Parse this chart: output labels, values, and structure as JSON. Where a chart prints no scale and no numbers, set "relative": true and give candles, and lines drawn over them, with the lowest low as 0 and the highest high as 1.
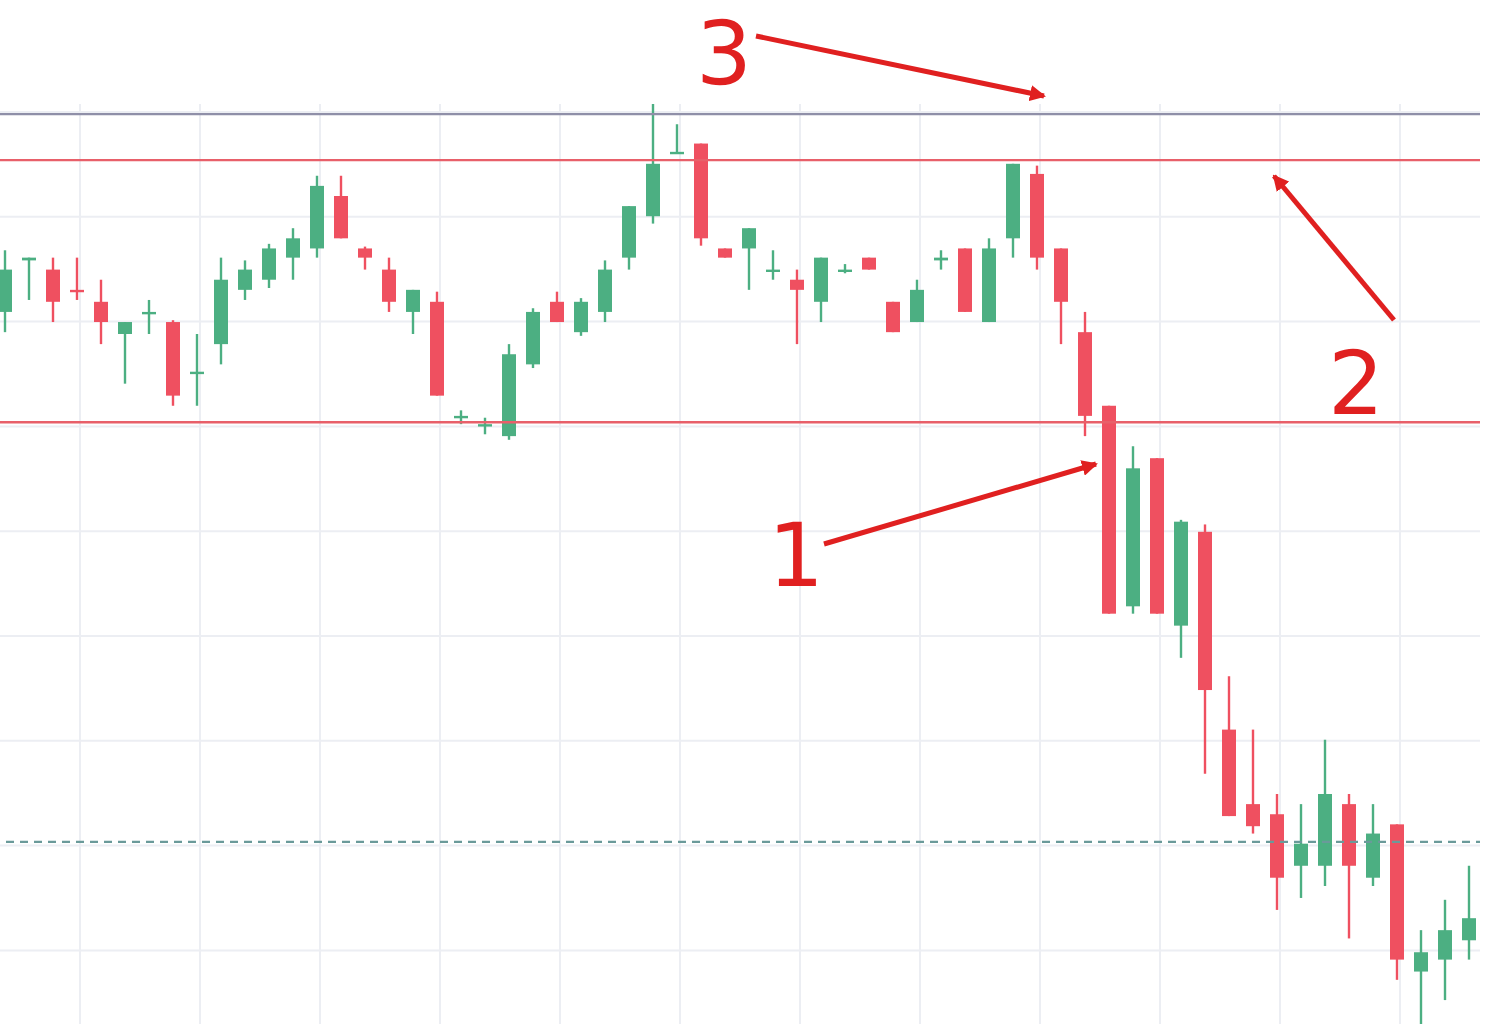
{
  "chart_data": {
    "type": "candlestick",
    "relative": true,
    "grid": true,
    "categories": [
      null,
      null,
      null,
      null,
      null,
      null,
      null,
      null,
      null,
      null,
      null,
      null,
      null,
      null,
      null,
      null,
      null,
      null,
      null,
      null,
      null,
      null,
      null,
      null,
      null,
      null,
      null,
      null,
      null,
      null,
      null,
      null,
      null,
      null,
      null,
      null,
      null,
      null,
      null,
      null,
      null,
      null,
      null,
      null,
      null,
      null,
      null,
      null,
      null,
      null,
      null,
      null,
      null,
      null,
      null,
      null,
      null,
      null,
      null,
      null,
      null,
      null
    ],
    "ohlc": [
      [
        0.774,
        0.841,
        0.752,
        0.82
      ],
      [
        0.83,
        0.833,
        0.787,
        0.833
      ],
      [
        0.82,
        0.833,
        0.763,
        0.785
      ],
      [
        0.798,
        0.833,
        0.787,
        0.798
      ],
      [
        0.785,
        0.809,
        0.739,
        0.763
      ],
      [
        0.75,
        0.763,
        0.696,
        0.763
      ],
      [
        0.774,
        0.787,
        0.75,
        0.774
      ],
      [
        0.763,
        0.765,
        0.672,
        0.683
      ],
      [
        0.707,
        0.75,
        0.672,
        0.709
      ],
      [
        0.739,
        0.833,
        0.717,
        0.809
      ],
      [
        0.798,
        0.83,
        0.787,
        0.82
      ],
      [
        0.809,
        0.848,
        0.8,
        0.843
      ],
      [
        0.833,
        0.865,
        0.809,
        0.854
      ],
      [
        0.843,
        0.922,
        0.833,
        0.911
      ],
      [
        0.9,
        0.922,
        0.854,
        0.854
      ],
      [
        0.843,
        0.845,
        0.82,
        0.833
      ],
      [
        0.82,
        0.833,
        0.774,
        0.785
      ],
      [
        0.774,
        0.798,
        0.75,
        0.798
      ],
      [
        0.785,
        0.796,
        0.683,
        0.683
      ],
      [
        0.661,
        0.667,
        0.652,
        0.661
      ],
      [
        0.652,
        0.659,
        0.641,
        0.652
      ],
      [
        0.639,
        0.739,
        0.635,
        0.728
      ],
      [
        0.717,
        0.778,
        0.713,
        0.774
      ],
      [
        0.785,
        0.796,
        0.763,
        0.763
      ],
      [
        0.752,
        0.789,
        0.748,
        0.785
      ],
      [
        0.774,
        0.83,
        0.763,
        0.82
      ],
      [
        0.833,
        0.889,
        0.82,
        0.889
      ],
      [
        0.878,
        1,
        0.87,
        0.935
      ],
      [
        0.946,
        0.978,
        0.946,
        0.948
      ],
      [
        0.957,
        0.957,
        0.846,
        0.854
      ],
      [
        0.843,
        0.843,
        0.833,
        0.833
      ],
      [
        0.843,
        0.865,
        0.798,
        0.865
      ],
      [
        0.82,
        0.841,
        0.809,
        0.82
      ],
      [
        0.809,
        0.82,
        0.739,
        0.798
      ],
      [
        0.785,
        0.833,
        0.763,
        0.833
      ],
      [
        0.82,
        0.826,
        0.816,
        0.82
      ],
      [
        0.833,
        0.833,
        0.82,
        0.82
      ],
      [
        0.785,
        0.785,
        0.752,
        0.752
      ],
      [
        0.763,
        0.809,
        0.763,
        0.798
      ],
      [
        0.83,
        0.841,
        0.82,
        0.833
      ],
      [
        0.843,
        0.843,
        0.774,
        0.774
      ],
      [
        0.763,
        0.854,
        0.763,
        0.843
      ],
      [
        0.854,
        0.935,
        0.833,
        0.935
      ],
      [
        0.924,
        0.933,
        0.82,
        0.833
      ],
      [
        0.843,
        0.843,
        0.739,
        0.785
      ],
      [
        0.752,
        0.774,
        0.639,
        0.661
      ],
      [
        0.672,
        0.672,
        0.446,
        0.446
      ],
      [
        0.454,
        0.628,
        0.446,
        0.604
      ],
      [
        0.615,
        0.615,
        0.446,
        0.446
      ],
      [
        0.433,
        0.548,
        0.398,
        0.546
      ],
      [
        0.535,
        0.543,
        0.272,
        0.363
      ],
      [
        0.32,
        0.378,
        0.226,
        0.226
      ],
      [
        0.239,
        0.32,
        0.207,
        0.215
      ],
      [
        0.228,
        0.25,
        0.124,
        0.159
      ],
      [
        0.172,
        0.239,
        0.137,
        0.196
      ],
      [
        0.172,
        0.309,
        0.15,
        0.25
      ],
      [
        0.239,
        0.25,
        0.093,
        0.172
      ],
      [
        0.159,
        0.239,
        0.15,
        0.207
      ],
      [
        0.217,
        0.217,
        0.048,
        0.07
      ],
      [
        0.057,
        0.102,
        0,
        0.078
      ],
      [
        0.07,
        0.135,
        0.026,
        0.102
      ],
      [
        0.091,
        0.172,
        0.07,
        0.115
      ]
    ],
    "colors": [
      "#4caf82",
      "#4caf82",
      "#ef5060",
      "#ef5060",
      "#ef5060",
      "#4caf82",
      "#4caf82",
      "#ef5060",
      "#4caf82",
      "#4caf82",
      "#4caf82",
      "#4caf82",
      "#4caf82",
      "#4caf82",
      "#ef5060",
      "#ef5060",
      "#ef5060",
      "#4caf82",
      "#ef5060",
      "#4caf82",
      "#4caf82",
      "#4caf82",
      "#4caf82",
      "#ef5060",
      "#4caf82",
      "#4caf82",
      "#4caf82",
      "#4caf82",
      "#4caf82",
      "#ef5060",
      "#ef5060",
      "#4caf82",
      "#4caf82",
      "#ef5060",
      "#4caf82",
      "#4caf82",
      "#ef5060",
      "#ef5060",
      "#4caf82",
      "#4caf82",
      "#ef5060",
      "#4caf82",
      "#4caf82",
      "#ef5060",
      "#ef5060",
      "#ef5060",
      "#ef5060",
      "#4caf82",
      "#ef5060",
      "#4caf82",
      "#ef5060",
      "#ef5060",
      "#ef5060",
      "#ef5060",
      "#4caf82",
      "#4caf82",
      "#ef5060",
      "#4caf82",
      "#ef5060",
      "#4caf82",
      "#4caf82",
      "#4caf82"
    ],
    "ref_lines": [
      {
        "axis": "y",
        "value": 0.989,
        "color": "#8f8fa8"
      },
      {
        "axis": "y",
        "value": 0.939,
        "color": "#e8606a"
      },
      {
        "axis": "y",
        "value": 0.654,
        "color": "#e8606a"
      },
      {
        "axis": "y",
        "value": 0.198,
        "color": "#6a9a9a",
        "line_style": "dashed"
      }
    ],
    "annotations": [
      "1",
      "2",
      "3"
    ]
  }
}
